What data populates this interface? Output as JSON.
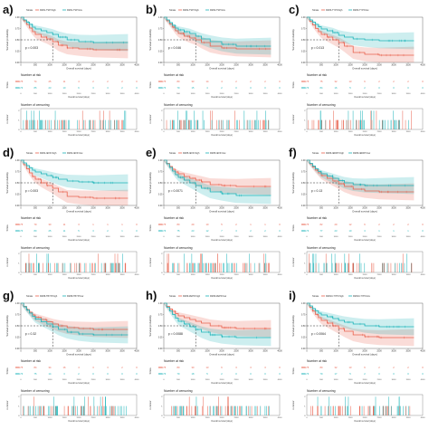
{
  "shared": {
    "legend_title": "Strata",
    "y_label": "Survival probability",
    "x_label": "Overall survival (days)",
    "risk_title": "Number at risk",
    "risk_ylabel": "Strata",
    "cens_title": "Number of censoring",
    "cens_ylabel": "n.censor",
    "x_ticks": [
      "0",
      "500",
      "1000",
      "1500",
      "2000",
      "2500",
      "3000",
      "3500",
      "4000"
    ],
    "y_ticks": [
      "0.00",
      "0.25",
      "0.50",
      "0.75",
      "1.00"
    ],
    "cens_y_ticks": [
      "0",
      "1",
      "2"
    ],
    "colors": {
      "high": "#e8604c",
      "low": "#1ab3b8"
    }
  },
  "chart_data": [
    {
      "panel": "a",
      "type": "line",
      "legend": [
        "RMJ1-TSP=high",
        "RMJ1-TSP=low"
      ],
      "p_value": "p = 0.003",
      "xlim": [
        0,
        4000
      ],
      "ylim": [
        0,
        1
      ],
      "series": [
        {
          "name": "RMJ1-TSP=high",
          "x": [
            0,
            100,
            200,
            300,
            400,
            500,
            700,
            900,
            1100,
            1300,
            1600,
            2000,
            2500,
            3000,
            3700
          ],
          "y": [
            1,
            0.92,
            0.84,
            0.76,
            0.68,
            0.62,
            0.56,
            0.52,
            0.46,
            0.38,
            0.32,
            0.3,
            0.28,
            0.28,
            0.28
          ]
        },
        {
          "name": "RMJ1-TSP=low",
          "x": [
            0,
            100,
            200,
            300,
            400,
            500,
            700,
            900,
            1100,
            1300,
            1600,
            2000,
            2500,
            3000,
            3700
          ],
          "y": [
            1,
            0.94,
            0.89,
            0.84,
            0.78,
            0.74,
            0.7,
            0.66,
            0.62,
            0.56,
            0.5,
            0.46,
            0.44,
            0.44,
            0.44
          ]
        }
      ],
      "risk": {
        "high": [
          "175",
          "74",
          "25",
          "11",
          "4",
          "2",
          "2",
          "2",
          "0"
        ],
        "low": [
          "176",
          "85",
          "23",
          "10",
          "6",
          "3",
          "3",
          "2",
          "0"
        ]
      }
    },
    {
      "panel": "b",
      "type": "line",
      "legend": [
        "RMJ2-TSP=high",
        "RMJ2-TSP=low"
      ],
      "p_value": "p = 0.046",
      "xlim": [
        0,
        4000
      ],
      "ylim": [
        0,
        1
      ],
      "series": [
        {
          "name": "RMJ2-TSP=high",
          "x": [
            0,
            100,
            200,
            300,
            400,
            500,
            700,
            900,
            1100,
            1300,
            1600,
            2000,
            2500,
            3000,
            3700
          ],
          "y": [
            1,
            0.92,
            0.85,
            0.78,
            0.7,
            0.64,
            0.58,
            0.54,
            0.5,
            0.44,
            0.36,
            0.32,
            0.3,
            0.3,
            0.3
          ]
        },
        {
          "name": "RMJ2-TSP=low",
          "x": [
            0,
            100,
            200,
            300,
            400,
            500,
            700,
            900,
            1100,
            1300,
            1600,
            2000,
            2500,
            3000,
            3700
          ],
          "y": [
            1,
            0.94,
            0.88,
            0.82,
            0.76,
            0.72,
            0.68,
            0.64,
            0.58,
            0.52,
            0.46,
            0.4,
            0.36,
            0.36,
            0.36
          ]
        }
      ],
      "risk": {
        "high": [
          "175",
          "80",
          "33",
          "14",
          "4",
          "2",
          "2",
          "2",
          "0"
        ],
        "low": [
          "176",
          "79",
          "15",
          "4",
          "2",
          "0",
          "0",
          "0",
          "0"
        ]
      }
    },
    {
      "panel": "c",
      "type": "line",
      "legend": [
        "RMJ3-TYPI=high",
        "RMJ3-TYPI=low"
      ],
      "p_value": "p = 0.013",
      "xlim": [
        0,
        4000
      ],
      "ylim": [
        0,
        1
      ],
      "series": [
        {
          "name": "RMJ3-TYPI=high",
          "x": [
            0,
            100,
            200,
            300,
            400,
            500,
            700,
            900,
            1100,
            1300,
            1600,
            2000,
            2500,
            3000,
            3700
          ],
          "y": [
            1,
            0.91,
            0.83,
            0.75,
            0.68,
            0.62,
            0.56,
            0.5,
            0.44,
            0.36,
            0.22,
            0.18,
            0.16,
            0.16,
            0.16
          ]
        },
        {
          "name": "RMJ3-TYPI=low",
          "x": [
            0,
            100,
            200,
            300,
            400,
            500,
            700,
            900,
            1100,
            1300,
            1600,
            2000,
            2500,
            3000,
            3700
          ],
          "y": [
            1,
            0.94,
            0.89,
            0.84,
            0.79,
            0.74,
            0.7,
            0.66,
            0.6,
            0.56,
            0.52,
            0.5,
            0.48,
            0.48,
            0.48
          ]
        }
      ],
      "risk": {
        "high": [
          "175",
          "75",
          "32",
          "13",
          "6",
          "2",
          "2",
          "2",
          "0"
        ],
        "low": [
          "176",
          "84",
          "16",
          "5",
          "2",
          "0",
          "0",
          "0",
          "0"
        ]
      }
    },
    {
      "panel": "d",
      "type": "line",
      "legend": [
        "RMJ4-IEXF=high",
        "RMJ4-IEXF=low"
      ],
      "p_value": "p = 0.003",
      "xlim": [
        0,
        4000
      ],
      "ylim": [
        0,
        1
      ],
      "series": [
        {
          "name": "RMJ4-IEXF=high",
          "x": [
            0,
            100,
            200,
            300,
            400,
            500,
            700,
            900,
            1100,
            1300,
            1600,
            2000,
            2500,
            3000,
            3700
          ],
          "y": [
            1,
            0.9,
            0.81,
            0.72,
            0.64,
            0.58,
            0.5,
            0.44,
            0.38,
            0.3,
            0.2,
            0.18,
            0.16,
            0.16,
            0.16
          ]
        },
        {
          "name": "RMJ4-IEXF=low",
          "x": [
            0,
            100,
            200,
            300,
            400,
            500,
            700,
            900,
            1100,
            1300,
            1600,
            2000,
            2500,
            3000,
            3700
          ],
          "y": [
            1,
            0.94,
            0.88,
            0.83,
            0.78,
            0.74,
            0.7,
            0.66,
            0.62,
            0.58,
            0.54,
            0.52,
            0.5,
            0.5,
            0.5
          ]
        }
      ],
      "risk": {
        "high": [
          "175",
          "79",
          "30",
          "11",
          "3",
          "1",
          "1",
          "1",
          "0"
        ],
        "low": [
          "176",
          "80",
          "25",
          "11",
          "5",
          "3",
          "2",
          "1",
          "0"
        ]
      }
    },
    {
      "panel": "e",
      "type": "line",
      "legend": [
        "RMJ5-IEXF=high",
        "RMJ5-IEXF=low"
      ],
      "p_value": "p = 0.0071",
      "xlim": [
        0,
        4000
      ],
      "ylim": [
        0,
        1
      ],
      "series": [
        {
          "name": "RMJ5-IEXF=high",
          "x": [
            0,
            100,
            200,
            300,
            400,
            500,
            700,
            900,
            1100,
            1300,
            1600,
            2000,
            2500,
            3000,
            3700
          ],
          "y": [
            1,
            0.93,
            0.86,
            0.8,
            0.74,
            0.7,
            0.64,
            0.6,
            0.56,
            0.52,
            0.46,
            0.44,
            0.42,
            0.42,
            0.42
          ]
        },
        {
          "name": "RMJ5-IEXF=low",
          "x": [
            0,
            100,
            200,
            300,
            400,
            500,
            700,
            900,
            1100,
            1300,
            1600,
            2000,
            2500,
            3000,
            3700
          ],
          "y": [
            1,
            0.92,
            0.84,
            0.76,
            0.68,
            0.62,
            0.56,
            0.5,
            0.44,
            0.38,
            0.3,
            0.26,
            0.22,
            0.22,
            0.22
          ]
        }
      ],
      "risk": {
        "high": [
          "175",
          "80",
          "29",
          "10",
          "5",
          "2",
          "1",
          "1",
          "0"
        ],
        "low": [
          "176",
          "75",
          "23",
          "12",
          "7",
          "3",
          "2",
          "2",
          "0"
        ]
      }
    },
    {
      "panel": "f",
      "type": "line",
      "legend": [
        "RMJ6-IEDFP=high",
        "RMJ6-IEDFP=low"
      ],
      "p_value": "p = 0.13",
      "xlim": [
        0,
        4000
      ],
      "ylim": [
        0,
        1
      ],
      "series": [
        {
          "name": "RMJ6-IEDFP=high",
          "x": [
            0,
            100,
            200,
            300,
            400,
            500,
            700,
            900,
            1100,
            1300,
            1600,
            2000,
            2500,
            3000,
            3700
          ],
          "y": [
            1,
            0.92,
            0.85,
            0.78,
            0.72,
            0.66,
            0.6,
            0.54,
            0.48,
            0.42,
            0.36,
            0.32,
            0.3,
            0.3,
            0.3
          ]
        },
        {
          "name": "RMJ6-IEDFP=low",
          "x": [
            0,
            100,
            200,
            300,
            400,
            500,
            700,
            900,
            1100,
            1300,
            1600,
            2000,
            2500,
            3000,
            3700
          ],
          "y": [
            1,
            0.93,
            0.87,
            0.81,
            0.75,
            0.7,
            0.65,
            0.6,
            0.55,
            0.5,
            0.46,
            0.44,
            0.44,
            0.44,
            0.44
          ]
        }
      ],
      "risk": {
        "high": [
          "175",
          "82",
          "29",
          "12",
          "6",
          "2",
          "2",
          "2",
          "0"
        ],
        "low": [
          "176",
          "77",
          "23",
          "10",
          "3",
          "1",
          "1",
          "1",
          "0"
        ]
      }
    },
    {
      "panel": "g",
      "type": "line",
      "legend": [
        "RMJ8-TBYP=high",
        "RMJ8-TBYP=low"
      ],
      "p_value": "p = 0.32",
      "xlim": [
        0,
        4000
      ],
      "ylim": [
        0,
        1
      ],
      "series": [
        {
          "name": "RMJ8-TBYP=high",
          "x": [
            0,
            100,
            200,
            300,
            400,
            500,
            700,
            900,
            1100,
            1300,
            1600,
            2000,
            2500,
            3000,
            3700
          ],
          "y": [
            1,
            0.93,
            0.86,
            0.8,
            0.74,
            0.69,
            0.64,
            0.59,
            0.54,
            0.5,
            0.46,
            0.44,
            0.42,
            0.42,
            0.42
          ]
        },
        {
          "name": "RMJ8-TBYP=low",
          "x": [
            0,
            100,
            200,
            300,
            400,
            500,
            700,
            900,
            1100,
            1300,
            1600,
            2000,
            2500,
            3000,
            3700
          ],
          "y": [
            1,
            0.92,
            0.85,
            0.78,
            0.71,
            0.65,
            0.59,
            0.54,
            0.48,
            0.42,
            0.36,
            0.32,
            0.3,
            0.3,
            0.3
          ]
        }
      ],
      "risk": {
        "high": [
          "175",
          "84",
          "34",
          "16",
          "4",
          "3",
          "3",
          "2",
          "0"
        ],
        "low": [
          "176",
          "75",
          "14",
          "3",
          "2",
          "0",
          "0",
          "0",
          "0"
        ]
      }
    },
    {
      "panel": "h",
      "type": "line",
      "legend": [
        "RMJ9-ZEPF=high",
        "RMJ9-ZEPF=low"
      ],
      "p_value": "p = 0.0088",
      "xlim": [
        0,
        4000
      ],
      "ylim": [
        0,
        1
      ],
      "series": [
        {
          "name": "RMJ9-ZEPF=high",
          "x": [
            0,
            100,
            200,
            300,
            400,
            500,
            700,
            900,
            1100,
            1300,
            1600,
            2000,
            2500,
            3000,
            3700
          ],
          "y": [
            1,
            0.93,
            0.87,
            0.82,
            0.77,
            0.72,
            0.68,
            0.64,
            0.6,
            0.56,
            0.5,
            0.46,
            0.44,
            0.44,
            0.44
          ]
        },
        {
          "name": "RMJ9-ZEPF=low",
          "x": [
            0,
            100,
            200,
            300,
            400,
            500,
            700,
            900,
            1100,
            1300,
            1600,
            2000,
            2500,
            3000,
            3700
          ],
          "y": [
            1,
            0.91,
            0.83,
            0.75,
            0.67,
            0.6,
            0.54,
            0.48,
            0.42,
            0.36,
            0.3,
            0.26,
            0.24,
            0.24,
            0.24
          ]
        }
      ],
      "risk": {
        "high": [
          "175",
          "80",
          "30",
          "13",
          "6",
          "3",
          "3",
          "3",
          "0"
        ],
        "low": [
          "176",
          "79",
          "18",
          "5",
          "2",
          "0",
          "0",
          "0",
          "0"
        ]
      }
    },
    {
      "panel": "i",
      "type": "line",
      "legend": [
        "RMJ10-TYPI=high",
        "RMJ10-TYPI=low"
      ],
      "p_value": "p = 0.0064",
      "xlim": [
        0,
        4000
      ],
      "ylim": [
        0,
        1
      ],
      "series": [
        {
          "name": "RMJ10-TYPI=high",
          "x": [
            0,
            100,
            200,
            300,
            400,
            500,
            700,
            900,
            1100,
            1300,
            1600,
            2000,
            2500,
            3000,
            3700
          ],
          "y": [
            1,
            0.91,
            0.83,
            0.75,
            0.68,
            0.62,
            0.56,
            0.5,
            0.44,
            0.38,
            0.3,
            0.26,
            0.24,
            0.24,
            0.24
          ]
        },
        {
          "name": "RMJ10-TYPI=low",
          "x": [
            0,
            100,
            200,
            300,
            400,
            500,
            700,
            900,
            1100,
            1300,
            1600,
            2000,
            2500,
            3000,
            3700
          ],
          "y": [
            1,
            0.94,
            0.88,
            0.83,
            0.78,
            0.74,
            0.7,
            0.66,
            0.62,
            0.58,
            0.54,
            0.5,
            0.48,
            0.48,
            0.48
          ]
        }
      ],
      "risk": {
        "high": [
          "175",
          "80",
          "32",
          "13",
          "6",
          "2",
          "2",
          "2",
          "0"
        ],
        "low": [
          "176",
          "79",
          "17",
          "5",
          "2",
          "0",
          "0",
          "0",
          "0"
        ]
      }
    }
  ]
}
